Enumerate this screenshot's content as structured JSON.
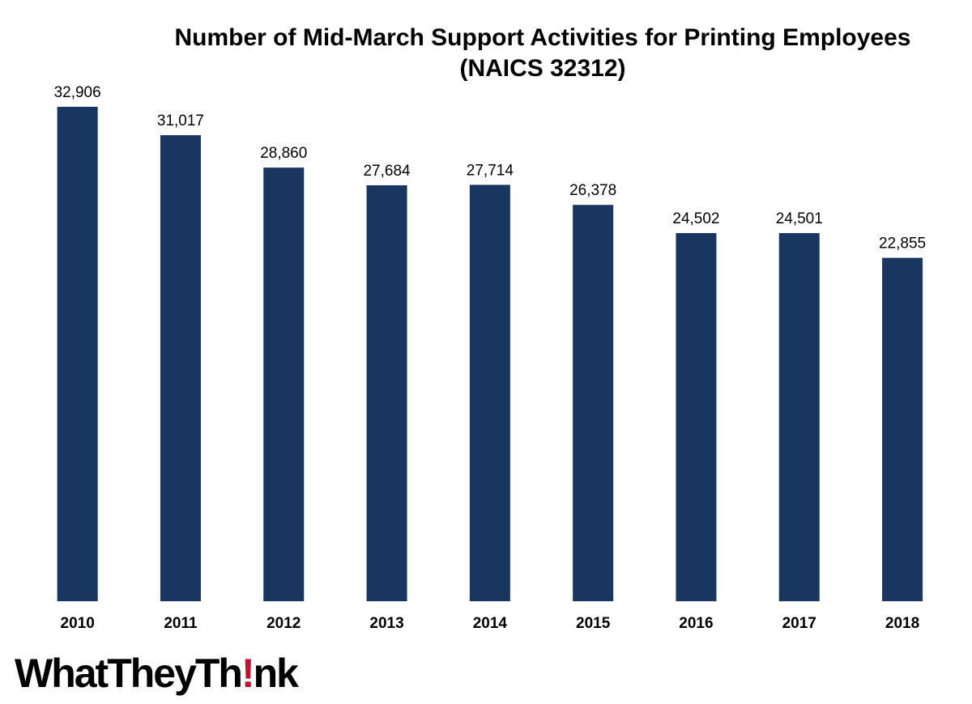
{
  "chart_data": {
    "type": "bar",
    "title": "Number of Mid-March Support Activities for Printing Employees",
    "subtitle": "(NAICS 32312)",
    "categories": [
      "2010",
      "2011",
      "2012",
      "2013",
      "2014",
      "2015",
      "2016",
      "2017",
      "2018"
    ],
    "values": [
      32906,
      31017,
      28860,
      27684,
      27714,
      26378,
      24502,
      24501,
      22855
    ],
    "value_labels": [
      "32,906",
      "31,017",
      "28,860",
      "27,684",
      "27,714",
      "26,378",
      "24,502",
      "24,501",
      "22,855"
    ],
    "xlabel": "",
    "ylabel": "",
    "ylim": [
      0,
      35000
    ],
    "grid": false,
    "legend": "none",
    "bar_color": "#18365f"
  },
  "logo": {
    "text_before": "WhatTheyTh",
    "bang": "!",
    "text_after": "nk",
    "accent_color": "#c8102e"
  }
}
